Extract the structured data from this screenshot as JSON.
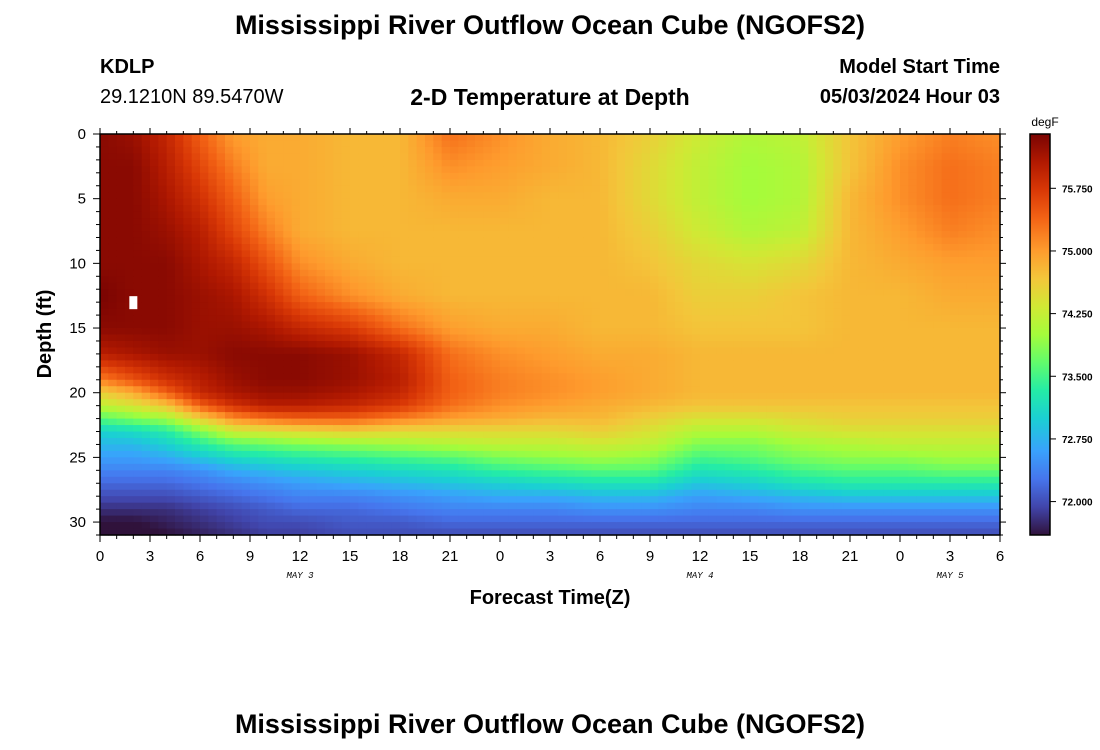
{
  "header": {
    "title": "Mississippi River Outflow Ocean Cube (NGOFS2)",
    "station": "KDLP",
    "coordinates": "29.1210N  89.5470W",
    "subtitle": "2-D Temperature at Depth",
    "model_start_label": "Model Start Time",
    "model_start_value": "05/03/2024 Hour 03"
  },
  "footer": {
    "title": "Mississippi River Outflow Ocean Cube (NGOFS2)"
  },
  "chart_data": {
    "type": "heatmap",
    "title": "2-D Temperature at Depth",
    "xlabel": "Forecast Time(Z)",
    "ylabel": "Depth (ft)",
    "x_tick_labels": [
      "0",
      "3",
      "6",
      "9",
      "12",
      "15",
      "18",
      "21",
      "0",
      "3",
      "6",
      "9",
      "12",
      "15",
      "18",
      "21",
      "0",
      "3",
      "6"
    ],
    "x_ticks_hours": [
      0,
      3,
      6,
      9,
      12,
      15,
      18,
      21,
      24,
      27,
      30,
      33,
      36,
      39,
      42,
      45,
      48,
      51,
      54
    ],
    "xlim": [
      0,
      54
    ],
    "date_labels": [
      {
        "label": "MAY 3",
        "hour": 12
      },
      {
        "label": "MAY 4",
        "hour": 36
      },
      {
        "label": "MAY 5",
        "hour": 51
      }
    ],
    "y_ticks": [
      0,
      5,
      10,
      15,
      20,
      25,
      30
    ],
    "ylim": [
      0,
      31
    ],
    "y_reversed": true,
    "colorbar": {
      "unit": "degF",
      "min": 71.6,
      "max": 76.4,
      "ticks": [
        "75.750",
        "75.000",
        "74.250",
        "73.500",
        "72.750",
        "72.000"
      ],
      "tick_values": [
        75.75,
        75.0,
        74.25,
        73.5,
        72.75,
        72.0
      ]
    },
    "marker": {
      "hour": 2,
      "depth": 13
    },
    "depths_ft": [
      0,
      2.5,
      5,
      7.5,
      10,
      12.5,
      15,
      17,
      19,
      20,
      21,
      22,
      23,
      24,
      25,
      26,
      27,
      28,
      29,
      30,
      31
    ],
    "columns": [
      {
        "hour": 0,
        "temps": [
          76.3,
          76.3,
          76.3,
          76.3,
          76.3,
          76.4,
          76.3,
          76.0,
          75.2,
          74.6,
          74.2,
          73.6,
          73.0,
          72.8,
          72.6,
          72.4,
          72.2,
          72.0,
          71.8,
          71.6,
          71.5
        ]
      },
      {
        "hour": 2,
        "temps": [
          76.2,
          76.3,
          76.3,
          76.3,
          76.3,
          76.3,
          76.3,
          76.1,
          75.5,
          74.9,
          74.4,
          73.8,
          73.1,
          72.8,
          72.6,
          72.4,
          72.2,
          72.0,
          71.8,
          71.6,
          71.5
        ]
      },
      {
        "hour": 4,
        "temps": [
          75.9,
          76.0,
          76.1,
          76.2,
          76.3,
          76.3,
          76.3,
          76.2,
          75.8,
          75.4,
          74.7,
          74.0,
          73.3,
          73.0,
          72.7,
          72.4,
          72.2,
          72.0,
          71.8,
          71.7,
          71.6
        ]
      },
      {
        "hour": 6,
        "temps": [
          75.4,
          75.6,
          75.8,
          76.0,
          76.1,
          76.2,
          76.2,
          76.2,
          76.0,
          75.9,
          75.4,
          74.6,
          73.8,
          73.3,
          72.9,
          72.5,
          72.3,
          72.1,
          71.9,
          71.8,
          71.7
        ]
      },
      {
        "hour": 8,
        "temps": [
          75.0,
          75.2,
          75.4,
          75.6,
          75.9,
          76.1,
          76.2,
          76.3,
          76.2,
          76.1,
          75.8,
          75.1,
          74.3,
          73.6,
          73.1,
          72.7,
          72.4,
          72.2,
          72.0,
          71.9,
          71.8
        ]
      },
      {
        "hour": 10,
        "temps": [
          74.9,
          74.9,
          75.0,
          75.2,
          75.5,
          75.8,
          76.1,
          76.3,
          76.3,
          76.2,
          76.0,
          75.3,
          74.4,
          73.7,
          73.2,
          72.8,
          72.5,
          72.3,
          72.1,
          72.0,
          71.9
        ]
      },
      {
        "hour": 12,
        "temps": [
          74.9,
          74.9,
          74.9,
          74.9,
          75.1,
          75.4,
          75.9,
          76.3,
          76.3,
          76.2,
          76.0,
          75.4,
          74.5,
          73.8,
          73.3,
          72.9,
          72.6,
          72.4,
          72.2,
          72.0,
          71.9
        ]
      },
      {
        "hour": 15,
        "temps": [
          74.8,
          74.8,
          74.8,
          74.8,
          74.9,
          75.1,
          75.7,
          76.2,
          76.2,
          76.1,
          75.9,
          75.4,
          74.6,
          73.9,
          73.4,
          73.0,
          72.7,
          72.4,
          72.2,
          72.1,
          72.0
        ]
      },
      {
        "hour": 18,
        "temps": [
          74.8,
          74.8,
          74.8,
          74.8,
          74.8,
          74.9,
          75.3,
          75.9,
          76.0,
          75.9,
          75.7,
          75.2,
          74.5,
          74.0,
          73.5,
          73.1,
          72.8,
          72.5,
          72.3,
          72.1,
          72.0
        ]
      },
      {
        "hour": 21,
        "temps": [
          75.3,
          75.1,
          74.9,
          74.8,
          74.8,
          74.8,
          75.0,
          75.3,
          75.4,
          75.4,
          75.3,
          75.0,
          74.5,
          74.1,
          73.6,
          73.2,
          72.9,
          72.6,
          72.4,
          72.2,
          72.0
        ]
      },
      {
        "hour": 24,
        "temps": [
          75.1,
          75.0,
          74.9,
          74.8,
          74.8,
          74.8,
          74.9,
          75.1,
          75.2,
          75.2,
          75.1,
          74.9,
          74.5,
          74.2,
          73.8,
          73.4,
          73.0,
          72.7,
          72.4,
          72.2,
          72.0
        ]
      },
      {
        "hour": 27,
        "temps": [
          74.9,
          74.9,
          74.8,
          74.8,
          74.8,
          74.8,
          74.9,
          75.0,
          75.1,
          75.1,
          75.0,
          74.8,
          74.5,
          74.2,
          73.9,
          73.5,
          73.1,
          72.7,
          72.4,
          72.2,
          72.0
        ]
      },
      {
        "hour": 30,
        "temps": [
          74.8,
          74.8,
          74.8,
          74.8,
          74.8,
          74.8,
          74.8,
          74.9,
          75.0,
          75.0,
          74.9,
          74.8,
          74.6,
          74.3,
          74.0,
          73.6,
          73.2,
          72.8,
          72.5,
          72.2,
          72.0
        ]
      },
      {
        "hour": 33,
        "temps": [
          74.6,
          74.5,
          74.5,
          74.6,
          74.7,
          74.8,
          74.8,
          74.9,
          74.9,
          74.9,
          74.8,
          74.6,
          74.4,
          74.2,
          73.9,
          73.6,
          73.2,
          72.8,
          72.5,
          72.2,
          72.0
        ]
      },
      {
        "hour": 36,
        "temps": [
          74.3,
          74.2,
          74.2,
          74.3,
          74.5,
          74.6,
          74.7,
          74.8,
          74.8,
          74.8,
          74.7,
          74.4,
          74.1,
          73.8,
          73.5,
          73.2,
          72.9,
          72.6,
          72.4,
          72.2,
          72.0
        ]
      },
      {
        "hour": 39,
        "temps": [
          74.1,
          74.0,
          74.0,
          74.1,
          74.4,
          74.6,
          74.7,
          74.8,
          74.8,
          74.8,
          74.7,
          74.4,
          74.1,
          73.8,
          73.6,
          73.3,
          73.0,
          72.7,
          72.4,
          72.2,
          72.0
        ]
      },
      {
        "hour": 42,
        "temps": [
          74.2,
          74.1,
          74.1,
          74.2,
          74.5,
          74.7,
          74.7,
          74.8,
          74.8,
          74.8,
          74.7,
          74.5,
          74.3,
          74.0,
          73.8,
          73.5,
          73.2,
          72.8,
          72.5,
          72.2,
          72.0
        ]
      },
      {
        "hour": 45,
        "temps": [
          74.7,
          74.7,
          74.8,
          74.8,
          74.8,
          74.8,
          74.8,
          74.8,
          74.8,
          74.8,
          74.7,
          74.6,
          74.4,
          74.1,
          73.9,
          73.6,
          73.3,
          72.9,
          72.5,
          72.2,
          72.0
        ]
      },
      {
        "hour": 48,
        "temps": [
          75.0,
          75.1,
          75.1,
          75.0,
          74.9,
          74.8,
          74.8,
          74.8,
          74.8,
          74.8,
          74.7,
          74.6,
          74.4,
          74.2,
          73.9,
          73.6,
          73.3,
          72.9,
          72.5,
          72.2,
          72.0
        ]
      },
      {
        "hour": 51,
        "temps": [
          75.2,
          75.3,
          75.3,
          75.2,
          75.0,
          74.9,
          74.8,
          74.8,
          74.8,
          74.8,
          74.7,
          74.6,
          74.4,
          74.2,
          74.0,
          73.7,
          73.3,
          72.9,
          72.5,
          72.2,
          72.0
        ]
      },
      {
        "hour": 54,
        "temps": [
          75.1,
          75.2,
          75.2,
          75.1,
          75.0,
          74.9,
          74.8,
          74.8,
          74.8,
          74.8,
          74.7,
          74.6,
          74.4,
          74.2,
          74.0,
          73.7,
          73.3,
          72.9,
          72.5,
          72.2,
          72.0
        ]
      }
    ]
  }
}
